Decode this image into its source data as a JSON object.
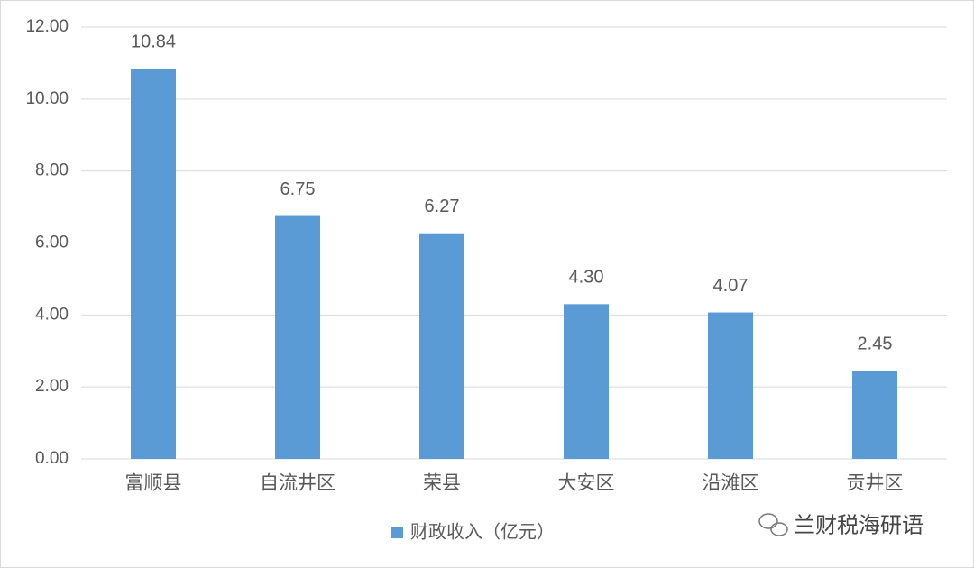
{
  "chart_data": {
    "type": "bar",
    "categories": [
      "富顺县",
      "自流井区",
      "荣县",
      "大安区",
      "沿滩区",
      "贡井区"
    ],
    "series": [
      {
        "name": "财政收入（亿元）",
        "color": "#5b9bd5",
        "values": [
          10.84,
          6.75,
          6.27,
          4.3,
          4.07,
          2.45
        ],
        "value_labels": [
          "10.84",
          "6.75",
          "6.27",
          "4.30",
          "4.07",
          "2.45"
        ]
      }
    ],
    "ylim": [
      0,
      12
    ],
    "yticks": [
      {
        "value": 0,
        "label": "0.00"
      },
      {
        "value": 2,
        "label": "2.00"
      },
      {
        "value": 4,
        "label": "4.00"
      },
      {
        "value": 6,
        "label": "6.00"
      },
      {
        "value": 8,
        "label": "8.00"
      },
      {
        "value": 10,
        "label": "10.00"
      },
      {
        "value": 12,
        "label": "12.00"
      }
    ],
    "grid": true,
    "legend": "bottom",
    "watermark": "兰财税海研语"
  }
}
